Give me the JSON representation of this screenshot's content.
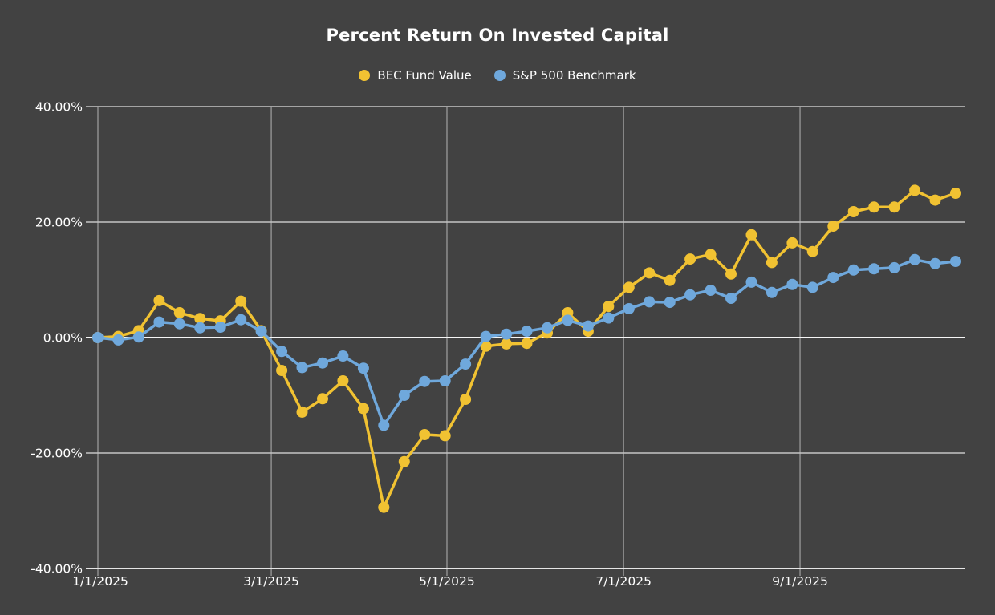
{
  "title": "Percent Return On Invested Capital",
  "legend": {
    "items": [
      {
        "label": "BEC Fund Value",
        "color": "#F1C232"
      },
      {
        "label": "S&P 500 Benchmark",
        "color": "#6FA8DC"
      }
    ]
  },
  "colors": {
    "background": "#424242",
    "text": "#FFFFFF",
    "grid_horizontal": "#C4C4C4",
    "grid_vertical": "#8E8E8E",
    "zero_line": "#F5F5F5",
    "axis_line": "#E5E5E5",
    "bec_series": "#F1C232",
    "sp500_series": "#6FA8DC"
  },
  "chart_data": {
    "type": "line",
    "title": "Percent Return On Invested Capital",
    "xlabel": "",
    "ylabel": "",
    "ylim": [
      -40,
      40
    ],
    "grid": true,
    "legend_position": "top",
    "marker": "circle",
    "x": [
      "1/1/2025",
      "1/8/2025",
      "1/15/2025",
      "1/22/2025",
      "1/29/2025",
      "2/5/2025",
      "2/12/2025",
      "2/19/2025",
      "2/26/2025",
      "3/5/2025",
      "3/12/2025",
      "3/19/2025",
      "3/26/2025",
      "4/2/2025",
      "4/9/2025",
      "4/16/2025",
      "4/23/2025",
      "4/30/2025",
      "5/7/2025",
      "5/14/2025",
      "5/21/2025",
      "5/28/2025",
      "6/4/2025",
      "6/11/2025",
      "6/18/2025",
      "6/25/2025",
      "7/2/2025",
      "7/9/2025",
      "7/16/2025",
      "7/23/2025",
      "7/30/2025",
      "8/6/2025",
      "8/13/2025",
      "8/20/2025",
      "8/27/2025",
      "9/3/2025",
      "9/10/2025",
      "9/17/2025",
      "9/24/2025",
      "10/1/2025",
      "10/8/2025",
      "10/15/2025",
      "10/22/2025"
    ],
    "series": [
      {
        "name": "BEC Fund Value",
        "color": "#F1C232",
        "values": [
          0.0,
          0.2,
          1.2,
          6.4,
          4.3,
          3.3,
          2.9,
          6.3,
          1.2,
          -5.7,
          -12.9,
          -10.6,
          -7.5,
          -12.3,
          -29.4,
          -21.5,
          -16.8,
          -17.0,
          -10.7,
          -1.5,
          -1.1,
          -1.0,
          0.8,
          4.3,
          1.1,
          5.4,
          8.7,
          11.2,
          9.9,
          13.6,
          14.4,
          11.0,
          17.8,
          13.0,
          16.4,
          14.9,
          19.3,
          21.8,
          22.6,
          22.6,
          25.5,
          23.8,
          25.0
        ]
      },
      {
        "name": "S&P 500 Benchmark",
        "color": "#6FA8DC",
        "values": [
          0.0,
          -0.4,
          0.1,
          2.7,
          2.4,
          1.7,
          1.8,
          3.1,
          1.1,
          -2.4,
          -5.2,
          -4.4,
          -3.2,
          -5.3,
          -15.2,
          -10.0,
          -7.6,
          -7.5,
          -4.6,
          0.2,
          0.6,
          1.1,
          1.7,
          3.0,
          2.0,
          3.4,
          5.0,
          6.2,
          6.1,
          7.4,
          8.2,
          6.8,
          9.6,
          7.8,
          9.2,
          8.7,
          10.4,
          11.7,
          11.9,
          12.1,
          13.5,
          12.8,
          13.2
        ]
      }
    ],
    "y_ticks": [
      {
        "value": 40,
        "label": "40.00%"
      },
      {
        "value": 20,
        "label": "20.00%"
      },
      {
        "value": 0,
        "label": "0.00%"
      },
      {
        "value": -20,
        "label": "-20.00%"
      },
      {
        "value": -40,
        "label": "-40.00%"
      }
    ],
    "x_ticks": [
      {
        "label": "1/1/2025",
        "pos_week": 0
      },
      {
        "label": "3/1/2025",
        "pos_week": 8.49
      },
      {
        "label": "5/1/2025",
        "pos_week": 17.09
      },
      {
        "label": "7/1/2025",
        "pos_week": 25.74
      },
      {
        "label": "9/1/2025",
        "pos_week": 34.38
      }
    ]
  }
}
